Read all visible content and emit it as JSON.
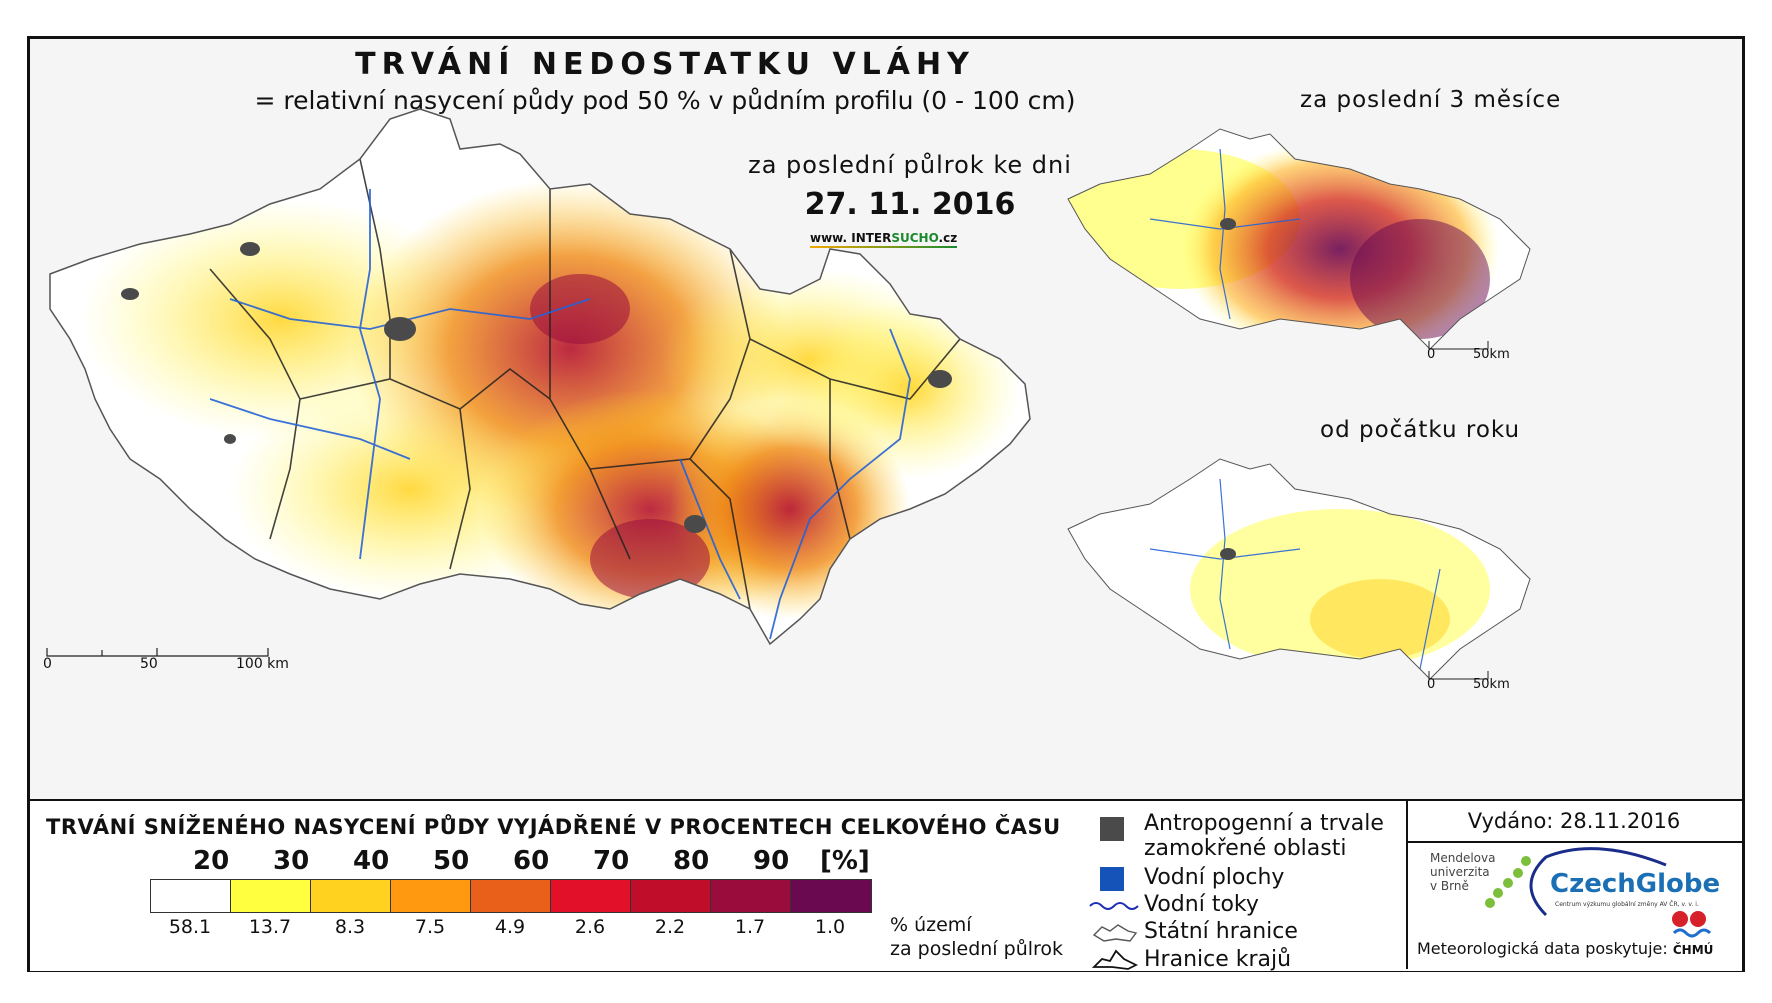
{
  "header": {
    "title": "TRVÁNÍ NEDOSTATKU VLÁHY",
    "subtitle": "= relativní nasycení půdy pod 50 % v půdním profilu (0 - 100 cm)",
    "period": "za poslední půlrok ke dni",
    "date": "27. 11. 2016",
    "website_prefix": "www. INTER",
    "website_highlight": "SUCHO",
    "website_suffix": ".cz"
  },
  "insets": {
    "top_title": "za poslední 3 měsíce",
    "bottom_title": "od počátku roku"
  },
  "scales": {
    "main": {
      "zero": "0",
      "mid": "50",
      "end": "100 km"
    },
    "inset_top": {
      "zero": "0",
      "end": "50km"
    },
    "inset_bottom": {
      "zero": "0",
      "end": "50km"
    }
  },
  "legend": {
    "title": "TRVÁNÍ SNÍŽENÉHO NASYCENÍ PŮDY VYJÁDŘENÉ V PROCENTECH CELKOVÉHO ČASU",
    "ticks": [
      "20",
      "30",
      "40",
      "50",
      "60",
      "70",
      "80",
      "90",
      "[%]"
    ],
    "colors": [
      "#ffffff",
      "#ffff40",
      "#ffd21f",
      "#ff9a10",
      "#e8601a",
      "#e3102a",
      "#bf0d2a",
      "#9a0c3c",
      "#6a0850"
    ],
    "values": [
      "58.1",
      "13.7",
      "8.3",
      "7.5",
      "4.9",
      "2.6",
      "2.2",
      "1.7",
      "1.0"
    ],
    "pct_label_line1": "% území",
    "pct_label_line2": "za poslední půlrok"
  },
  "symbols": {
    "anthropogenic_line1": "Antropogenní a trvale",
    "anthropogenic_line2": "zamokřené oblasti",
    "water_bodies": "Vodní plochy",
    "water_streams": "Vodní toky",
    "state_border": "Státní hranice",
    "region_border": "Hranice krajů"
  },
  "credits": {
    "issued": "Vydáno: 28.11.2016",
    "mendel_line1": "Mendelova",
    "mendel_line2": "univerzita",
    "mendel_line3": "v Brně",
    "czechglobe": "CzechGlobe",
    "czechglobe_sub": "Centrum výzkumu globální změny AV ČR, v. v. i.",
    "meteo": "Meteorologická data poskytuje:",
    "chmu": "ČHMÚ"
  }
}
